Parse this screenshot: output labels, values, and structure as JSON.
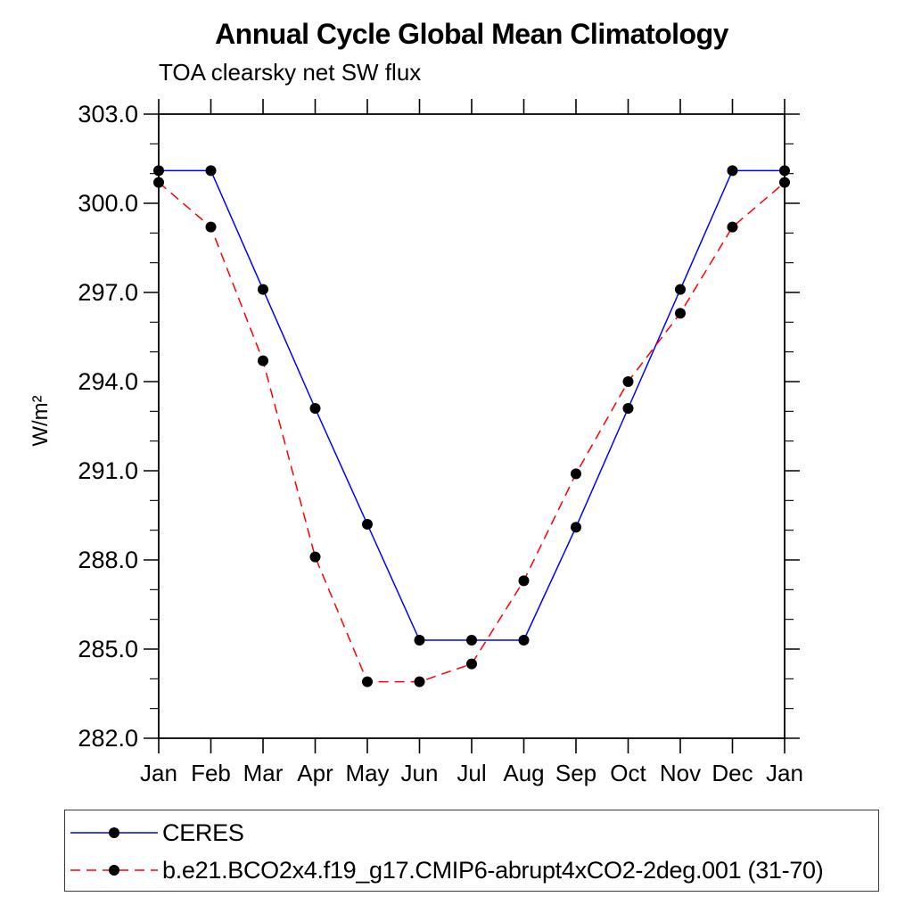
{
  "chart_data": {
    "type": "line",
    "title": "Annual Cycle Global Mean Climatology",
    "subtitle": "TOA clearsky net SW flux",
    "ylabel": "W/m²",
    "xlabel": "",
    "categories": [
      "Jan",
      "Feb",
      "Mar",
      "Apr",
      "May",
      "Jun",
      "Jul",
      "Aug",
      "Sep",
      "Oct",
      "Nov",
      "Dec",
      "Jan"
    ],
    "ylim": [
      282.0,
      303.0
    ],
    "ytick_major": 3.0,
    "ytick_minor": 1.0,
    "grid": false,
    "legend_position": "bottom",
    "marker_color": "#000000",
    "series": [
      {
        "name": "CERES",
        "color": "#0000ff",
        "style": "solid",
        "marker": "black-dot",
        "values": [
          301.1,
          301.1,
          297.1,
          293.1,
          289.2,
          285.3,
          285.3,
          285.3,
          289.1,
          293.1,
          297.1,
          301.1,
          301.1
        ]
      },
      {
        "name": "b.e21.BCO2x4.f19_g17.CMIP6-abrupt4xCO2-2deg.001 (31-70)",
        "color": "#ff0000",
        "style": "dashed",
        "marker": "black-dot",
        "values": [
          300.7,
          299.2,
          294.7,
          288.1,
          283.9,
          283.9,
          284.5,
          287.3,
          290.9,
          294.0,
          296.3,
          299.2,
          300.7
        ]
      }
    ]
  }
}
